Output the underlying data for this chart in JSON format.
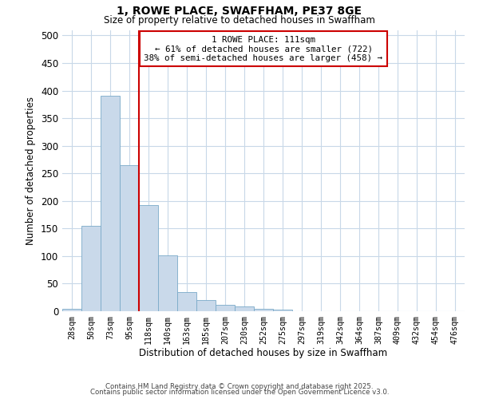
{
  "title": "1, ROWE PLACE, SWAFFHAM, PE37 8GE",
  "subtitle": "Size of property relative to detached houses in Swaffham",
  "xlabel": "Distribution of detached houses by size in Swaffham",
  "ylabel": "Number of detached properties",
  "bar_labels": [
    "28sqm",
    "50sqm",
    "73sqm",
    "95sqm",
    "118sqm",
    "140sqm",
    "163sqm",
    "185sqm",
    "207sqm",
    "230sqm",
    "252sqm",
    "275sqm",
    "297sqm",
    "319sqm",
    "342sqm",
    "364sqm",
    "387sqm",
    "409sqm",
    "432sqm",
    "454sqm",
    "476sqm"
  ],
  "bar_values": [
    5,
    155,
    390,
    265,
    192,
    102,
    35,
    20,
    11,
    8,
    5,
    3,
    0,
    0,
    0,
    0,
    0,
    0,
    0,
    0,
    0
  ],
  "bar_color": "#c9d9ea",
  "bar_edgecolor": "#7aaac8",
  "vline_color": "#cc0000",
  "vline_index": 4,
  "annotation_text": "1 ROWE PLACE: 111sqm\n← 61% of detached houses are smaller (722)\n38% of semi-detached houses are larger (458) →",
  "annotation_box_color": "#ffffff",
  "annotation_box_edgecolor": "#cc0000",
  "ylim": [
    0,
    510
  ],
  "yticks": [
    0,
    50,
    100,
    150,
    200,
    250,
    300,
    350,
    400,
    450,
    500
  ],
  "grid_color": "#c8d8e8",
  "background_color": "#ffffff",
  "footer_line1": "Contains HM Land Registry data © Crown copyright and database right 2025.",
  "footer_line2": "Contains public sector information licensed under the Open Government Licence v3.0."
}
